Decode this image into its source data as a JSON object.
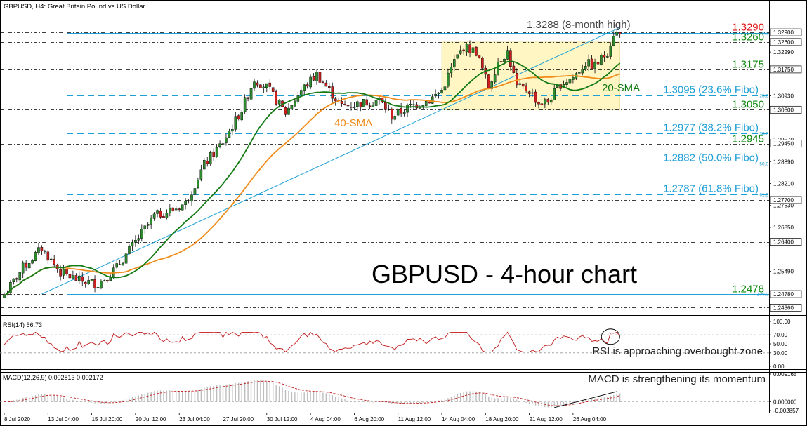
{
  "header": {
    "symbol_title": "GBPUSD, H4:  Great Britain Pound vs US Dollar",
    "chart_title": "GBPUSD - 4-hour chart"
  },
  "colors": {
    "candle_up": "#2e8b2e",
    "candle_down": "#cc1f1f",
    "sma20": "#137a13",
    "sma40": "#f08c1a",
    "fibo": "#1e9fd6",
    "trendline": "#1e9fd6",
    "range_box": "#fff6c4",
    "level_red": "#e01010",
    "level_green": "#0f8a0f",
    "rsi_line": "#c01818",
    "macd_signal": "#c01818",
    "macd_hist": "#bdbdbd"
  },
  "chart_data": [
    {
      "type": "candlestick",
      "title": "GBPUSD - 4-hour chart",
      "price_range": [
        1.2415,
        1.3325
      ],
      "x_labels": [
        "8 Jul 2020",
        "13 Jul 04:00",
        "15 Jul 20:00",
        "20 Jul 12:00",
        "23 Jul 04:00",
        "27 Jul 20:00",
        "30 Jul 12:00",
        "4 Aug 04:00",
        "6 Aug 20:00",
        "11 Aug 12:00",
        "14 Aug 04:00",
        "18 Aug 20:00",
        "21 Aug 12:00",
        "26 Aug 04:00"
      ],
      "y_ticks": [
        "1.32900",
        "1.32600",
        "1.32290",
        "1.31750",
        "1.30930",
        "1.30500",
        "1.29570",
        "1.29450",
        "1.28890",
        "1.28210",
        "1.27700",
        "1.27530",
        "1.26850",
        "1.26400",
        "1.25490",
        "1.24780",
        "1.24360"
      ],
      "highlight_ticks": [
        "1.32900",
        "1.32600",
        "1.31750",
        "1.30500",
        "1.29450",
        "1.27700",
        "1.26400",
        "1.24780",
        "1.24360"
      ],
      "anchors": [
        [
          0,
          1.2475
        ],
        [
          6,
          1.256
        ],
        [
          12,
          1.262
        ],
        [
          18,
          1.2545
        ],
        [
          24,
          1.252
        ],
        [
          30,
          1.251
        ],
        [
          36,
          1.256
        ],
        [
          42,
          1.264
        ],
        [
          48,
          1.272
        ],
        [
          54,
          1.274
        ],
        [
          58,
          1.276
        ],
        [
          64,
          1.288
        ],
        [
          70,
          1.295
        ],
        [
          76,
          1.305
        ],
        [
          80,
          1.3145
        ],
        [
          84,
          1.312
        ],
        [
          90,
          1.304
        ],
        [
          95,
          1.311
        ],
        [
          100,
          1.316
        ],
        [
          104,
          1.311
        ],
        [
          108,
          1.306
        ],
        [
          114,
          1.307
        ],
        [
          120,
          1.308
        ],
        [
          124,
          1.303
        ],
        [
          130,
          1.306
        ],
        [
          136,
          1.308
        ],
        [
          140,
          1.311
        ],
        [
          144,
          1.32
        ],
        [
          147,
          1.3245
        ],
        [
          151,
          1.323
        ],
        [
          155,
          1.312
        ],
        [
          158,
          1.32
        ],
        [
          161,
          1.323
        ],
        [
          164,
          1.312
        ],
        [
          168,
          1.311
        ],
        [
          171,
          1.307
        ],
        [
          174,
          1.3075
        ],
        [
          178,
          1.313
        ],
        [
          182,
          1.315
        ],
        [
          186,
          1.3195
        ],
        [
          189,
          1.3185
        ],
        [
          193,
          1.323
        ],
        [
          195,
          1.3288
        ]
      ],
      "horizontal_levels": [
        {
          "label": "1.3290",
          "value": 1.329,
          "color": "red"
        },
        {
          "label": "1.3260",
          "value": 1.326,
          "color": "green"
        },
        {
          "label": "1.3175",
          "value": 1.3175,
          "color": "green"
        },
        {
          "label": "1.3050",
          "value": 1.305,
          "color": "green"
        },
        {
          "label": "1.2945",
          "value": 1.2945,
          "color": "green"
        },
        {
          "label": "",
          "value": 1.277,
          "color": "black"
        },
        {
          "label": "",
          "value": 1.264,
          "color": "black"
        },
        {
          "label": "1.2478",
          "value": 1.2478,
          "color": "green"
        },
        {
          "label": "",
          "value": 1.2436,
          "color": "black"
        }
      ],
      "fibonacci": [
        {
          "label": "1.3288",
          "ratio": "0.0",
          "value": 1.3288
        },
        {
          "label": "1.3095 (23.6% Fibo)",
          "ratio": "23.6",
          "value": 1.3095
        },
        {
          "label": "1.2977 (38.2% Fibo)",
          "ratio": "38.2",
          "value": 1.2977
        },
        {
          "label": "1.2882 (50.0% Fibo)",
          "ratio": "50.0",
          "value": 1.2882
        },
        {
          "label": "1.2787 (61.8% Fibo)",
          "ratio": "61.8",
          "value": 1.2787
        },
        {
          "label": "",
          "ratio": "100.0",
          "value": 1.2478
        }
      ],
      "annotations": {
        "eight_month_high": "1.3288 (8-month high)",
        "sma20": "20-SMA",
        "sma40": "40-SMA"
      },
      "range_box": {
        "top": 1.326,
        "bottom": 1.305,
        "start_bar": 140,
        "end_bar": 197
      },
      "trendline": {
        "start_bar": 12,
        "start_value": 1.2478,
        "end_bar": 197,
        "end_value": 1.3305
      }
    },
    {
      "type": "line",
      "name": "RSI(14)",
      "header_text": "RSI(14) 66.73",
      "value": 66.73,
      "y_ticks": [
        "100.00",
        "70.00",
        "50.00",
        "30.00",
        "0.00"
      ],
      "ylim": [
        0,
        100
      ],
      "annotation": "RSI is approaching overbought zone"
    },
    {
      "type": "bar",
      "name": "MACD(12,26,9)",
      "header_text": "MACD(12,26,9) 0.002813 0.002172",
      "macd": 0.002813,
      "signal": 0.002172,
      "y_ticks": [
        "0.009165",
        "0.000000",
        "-0.002857"
      ],
      "ylim": [
        -0.002857,
        0.009165
      ],
      "annotation": "MACD is strengthening its momentum"
    }
  ]
}
